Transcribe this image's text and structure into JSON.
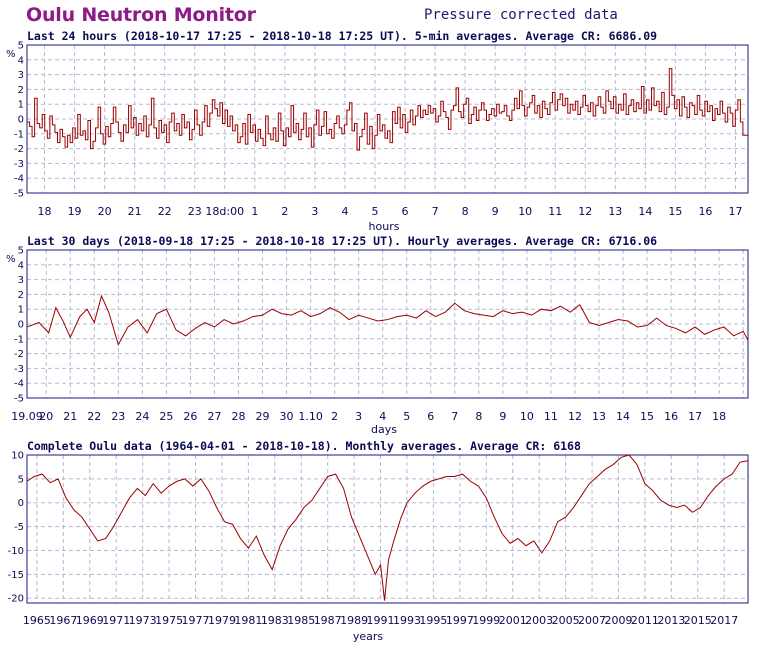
{
  "header": {
    "title": "Oulu Neutron Monitor",
    "subtitle": "Pressure corrected data"
  },
  "colors": {
    "title": "#8e1a86",
    "text": "#0b0b55",
    "frame": "#1a1a80",
    "grid": "#b8b8d8",
    "series": "#9b0000"
  },
  "chart_data": [
    {
      "type": "line",
      "step": true,
      "title": "Last 24 hours (2018-10-17 17:25 - 2018-10-18 17:25 UT). 5-min averages. Average CR: 6686.09",
      "ylabel": "%",
      "xlabel": "hours",
      "ylim": [
        -5,
        5
      ],
      "yticks": [
        -5,
        -4,
        -3,
        -2,
        -1,
        0,
        1,
        2,
        3,
        4,
        5
      ],
      "xlim": [
        0,
        288
      ],
      "xtick_positions": [
        7,
        19,
        31,
        43,
        55,
        67,
        79,
        91,
        103,
        115,
        127,
        139,
        151,
        163,
        175,
        187,
        199,
        211,
        223,
        235,
        247,
        259,
        271,
        283
      ],
      "xtick_labels": [
        "18",
        "19",
        "20",
        "21",
        "22",
        "23",
        "18d:00",
        "1",
        "2",
        "3",
        "4",
        "5",
        "6",
        "7",
        "8",
        "9",
        "10",
        "11",
        "12",
        "13",
        "14",
        "15",
        "16",
        "17"
      ],
      "grid": true,
      "series": [
        {
          "values": [
            -0.2,
            -0.5,
            -1.2,
            1.4,
            -0.3,
            -0.6,
            0.3,
            -0.8,
            -1.3,
            0.2,
            -0.4,
            -0.9,
            -1.6,
            -0.7,
            -1.2,
            -1.9,
            -1.1,
            -1.6,
            -0.6,
            -1.3,
            0.3,
            -1.1,
            -0.8,
            -1.4,
            -0.1,
            -2.0,
            -1.5,
            -0.6,
            0.8,
            -1.0,
            -1.7,
            -0.5,
            -1.2,
            -0.3,
            0.8,
            -0.2,
            -0.9,
            -1.5,
            -0.4,
            -0.9,
            0.9,
            -0.6,
            0.1,
            -1.1,
            -0.3,
            -0.8,
            0.2,
            -1.2,
            -0.4,
            1.4,
            -0.6,
            -1.3,
            -0.1,
            -0.9,
            -0.4,
            -1.6,
            -0.2,
            0.4,
            -0.8,
            -0.3,
            -1.1,
            0.3,
            -0.6,
            -0.2,
            -1.4,
            -0.7,
            0.6,
            -0.4,
            -1.1,
            -0.2,
            0.9,
            -0.5,
            0.4,
            1.3,
            0.7,
            0.2,
            1.1,
            -0.3,
            0.6,
            -0.5,
            0.2,
            -0.8,
            -0.4,
            -1.6,
            -1.2,
            -0.3,
            -1.7,
            0.3,
            -0.9,
            -0.4,
            -1.5,
            -0.7,
            -1.3,
            -1.8,
            0.2,
            -1.0,
            -1.4,
            -0.6,
            -1.5,
            0.4,
            -0.8,
            -1.8,
            -0.6,
            -1.2,
            0.9,
            -0.9,
            -0.3,
            -1.4,
            -0.7,
            0.4,
            -1.2,
            -0.6,
            -1.9,
            -0.4,
            0.6,
            -1.1,
            -0.5,
            0.5,
            -1.0,
            -0.7,
            -1.3,
            -0.3,
            0.2,
            -0.6,
            -1.0,
            -0.4,
            0.6,
            1.1,
            -0.8,
            -0.3,
            -2.1,
            -1.2,
            -0.7,
            0.4,
            -1.7,
            -0.5,
            -2.0,
            -1.1,
            0.3,
            -0.8,
            -0.4,
            -1.3,
            -0.8,
            -1.6,
            0.5,
            -0.3,
            0.8,
            -0.6,
            0.3,
            -0.9,
            -0.2,
            0.6,
            -0.4,
            0.2,
            0.9,
            0.1,
            0.6,
            0.3,
            0.9,
            0.4,
            0.7,
            -0.2,
            0.2,
            1.2,
            0.5,
            0.1,
            -0.7,
            0.6,
            0.9,
            2.1,
            0.5,
            0.1,
            1.0,
            1.4,
            -0.3,
            0.3,
            0.8,
            -0.1,
            0.6,
            1.1,
            0.6,
            -0.1,
            0.3,
            0.7,
            0.2,
            1.0,
            0.4,
            0.5,
            0.9,
            0.2,
            -0.1,
            0.6,
            1.4,
            0.7,
            1.9,
            0.9,
            0.2,
            0.8,
            1.1,
            1.6,
            0.4,
            0.9,
            0.1,
            1.2,
            0.7,
            0.3,
            1.1,
            1.8,
            0.6,
            1.3,
            1.7,
            0.9,
            1.4,
            0.4,
            1.0,
            0.6,
            1.2,
            0.3,
            0.8,
            1.6,
            0.9,
            0.5,
            1.1,
            0.2,
            0.9,
            1.5,
            0.8,
            0.4,
            1.9,
            1.2,
            0.7,
            1.5,
            0.4,
            1.0,
            0.6,
            1.7,
            0.3,
            0.9,
            1.3,
            0.5,
            1.1,
            0.7,
            2.2,
            0.4,
            1.3,
            0.6,
            2.1,
            0.9,
            1.2,
            0.5,
            1.8,
            0.3,
            0.8,
            3.4,
            1.6,
            0.7,
            1.3,
            0.2,
            1.5,
            0.8,
            0.1,
            1.1,
            0.9,
            0.3,
            1.6,
            0.6,
            0.2,
            1.2,
            0.5,
            0.9,
            -0.1,
            0.7,
            0.3,
            1.2,
            0.4,
            -0.2,
            0.8,
            0.4,
            -0.5,
            0.6,
            1.3,
            -0.2,
            -1.1,
            -1.1
          ]
        }
      ]
    },
    {
      "type": "line",
      "title": "Last 30 days (2018-09-18 17:25 - 2018-10-18 17:25 UT). Hourly averages. Average CR: 6716.06",
      "ylabel": "%",
      "xlabel": "days",
      "ylim": [
        -5,
        5
      ],
      "yticks": [
        -5,
        -4,
        -3,
        -2,
        -1,
        0,
        1,
        2,
        3,
        4,
        5
      ],
      "xlim": [
        0,
        30
      ],
      "xtick_positions": [
        0.0,
        0.8,
        1.8,
        2.8,
        3.8,
        4.8,
        5.8,
        6.8,
        7.8,
        8.8,
        9.8,
        10.8,
        11.8,
        12.8,
        13.8,
        14.8,
        15.8,
        16.8,
        17.8,
        18.8,
        19.8,
        20.8,
        21.8,
        22.8,
        23.8,
        24.8,
        25.8,
        26.8,
        27.8,
        28.8,
        29.8
      ],
      "xtick_labels": [
        "19.09",
        "20",
        "21",
        "22",
        "23",
        "24",
        "25",
        "26",
        "27",
        "28",
        "29",
        "30",
        "1.10",
        "2",
        "3",
        "4",
        "5",
        "6",
        "7",
        "8",
        "9",
        "10",
        "11",
        "12",
        "13",
        "14",
        "15",
        "16",
        "17",
        "18",
        ""
      ],
      "grid": true,
      "series": [
        {
          "x": [
            0,
            0.5,
            0.9,
            1.2,
            1.5,
            1.8,
            2.2,
            2.5,
            2.8,
            3.1,
            3.4,
            3.8,
            4.2,
            4.6,
            5.0,
            5.4,
            5.8,
            6.2,
            6.6,
            7.0,
            7.4,
            7.8,
            8.2,
            8.6,
            9.0,
            9.4,
            9.8,
            10.2,
            10.6,
            11.0,
            11.4,
            11.8,
            12.2,
            12.6,
            13.0,
            13.4,
            13.8,
            14.2,
            14.6,
            15.0,
            15.4,
            15.8,
            16.2,
            16.6,
            17.0,
            17.4,
            17.8,
            18.2,
            18.6,
            19.0,
            19.4,
            19.8,
            20.2,
            20.6,
            21.0,
            21.4,
            21.8,
            22.2,
            22.6,
            23.0,
            23.4,
            23.8,
            24.2,
            24.6,
            25.0,
            25.4,
            25.8,
            26.2,
            26.6,
            27.0,
            27.4,
            27.8,
            28.2,
            28.6,
            29.0,
            29.4,
            29.8,
            30.0
          ],
          "y": [
            -0.2,
            0.1,
            -0.6,
            1.1,
            0.2,
            -0.9,
            0.5,
            1.0,
            0.1,
            1.9,
            0.8,
            -1.4,
            -0.2,
            0.3,
            -0.6,
            0.7,
            1.0,
            -0.4,
            -0.8,
            -0.3,
            0.1,
            -0.2,
            0.3,
            0.0,
            0.2,
            0.5,
            0.6,
            1.0,
            0.7,
            0.6,
            0.9,
            0.5,
            0.7,
            1.1,
            0.8,
            0.3,
            0.6,
            0.4,
            0.2,
            0.3,
            0.5,
            0.6,
            0.4,
            0.9,
            0.5,
            0.8,
            1.4,
            0.9,
            0.7,
            0.6,
            0.5,
            0.9,
            0.7,
            0.8,
            0.6,
            1.0,
            0.9,
            1.2,
            0.8,
            1.3,
            0.1,
            -0.1,
            0.1,
            0.3,
            0.2,
            -0.2,
            -0.1,
            0.4,
            -0.1,
            -0.3,
            -0.6,
            -0.2,
            -0.7,
            -0.4,
            -0.2,
            -0.8,
            -0.5,
            -1.1
          ]
        }
      ]
    },
    {
      "type": "line",
      "title": "Complete Oulu data (1964-04-01 - 2018-10-18). Monthly averages. Average CR: 6168",
      "ylabel": "",
      "xlabel": "years",
      "ylim": [
        -21,
        10
      ],
      "yticks": [
        -20,
        -15,
        -10,
        -5,
        0,
        5,
        10
      ],
      "xlim": [
        1964.25,
        2018.8
      ],
      "xtick_positions": [
        1965,
        1967,
        1969,
        1971,
        1973,
        1975,
        1977,
        1979,
        1981,
        1983,
        1985,
        1987,
        1989,
        1991,
        1993,
        1995,
        1997,
        1999,
        2001,
        2003,
        2005,
        2007,
        2009,
        2011,
        2013,
        2015,
        2017
      ],
      "xtick_labels": [
        "1965",
        "1967",
        "1969",
        "1971",
        "1973",
        "1975",
        "1977",
        "1979",
        "1981",
        "1983",
        "1985",
        "1987",
        "1989",
        "1991",
        "1993",
        "1995",
        "1997",
        "1999",
        "2001",
        "2003",
        "2005",
        "2007",
        "2009",
        "2011",
        "2013",
        "2015",
        "2017"
      ],
      "grid": true,
      "series": [
        {
          "x": [
            1964.25,
            1964.8,
            1965.4,
            1966.0,
            1966.6,
            1967.2,
            1967.8,
            1968.4,
            1969.0,
            1969.6,
            1970.2,
            1970.8,
            1971.4,
            1972.0,
            1972.6,
            1973.2,
            1973.8,
            1974.4,
            1975.0,
            1975.6,
            1976.2,
            1976.8,
            1977.4,
            1978.0,
            1978.6,
            1979.2,
            1979.8,
            1980.4,
            1981.0,
            1981.6,
            1982.2,
            1982.8,
            1983.4,
            1984.0,
            1984.6,
            1985.2,
            1985.8,
            1986.4,
            1987.0,
            1987.6,
            1988.2,
            1988.8,
            1989.4,
            1990.0,
            1990.6,
            1991.0,
            1991.3,
            1991.6,
            1992.0,
            1992.5,
            1993.0,
            1993.6,
            1994.2,
            1994.8,
            1995.4,
            1996.0,
            1996.6,
            1997.2,
            1997.8,
            1998.4,
            1999.0,
            1999.6,
            2000.2,
            2000.8,
            2001.4,
            2002.0,
            2002.6,
            2003.2,
            2003.8,
            2004.4,
            2005.0,
            2005.6,
            2006.2,
            2006.8,
            2007.4,
            2008.0,
            2008.6,
            2009.2,
            2009.8,
            2010.4,
            2011.0,
            2011.6,
            2012.2,
            2012.8,
            2013.4,
            2014.0,
            2014.6,
            2015.2,
            2015.8,
            2016.4,
            2017.0,
            2017.6,
            2018.2,
            2018.8
          ],
          "y": [
            4.5,
            5.5,
            6.0,
            4.2,
            5.0,
            1.0,
            -1.5,
            -3.0,
            -5.5,
            -8.0,
            -7.5,
            -5.0,
            -2.0,
            1.0,
            3.0,
            1.5,
            4.0,
            2.0,
            3.5,
            4.5,
            5.0,
            3.5,
            5.0,
            2.5,
            -1.0,
            -4.0,
            -4.5,
            -7.5,
            -9.5,
            -7.0,
            -11.0,
            -14.0,
            -9.0,
            -5.5,
            -3.5,
            -1.0,
            0.5,
            3.0,
            5.5,
            6.0,
            3.0,
            -3.0,
            -7.0,
            -11.0,
            -15.0,
            -13.0,
            -20.5,
            -12.0,
            -8.0,
            -3.5,
            0.0,
            2.0,
            3.5,
            4.5,
            5.0,
            5.5,
            5.5,
            6.0,
            4.5,
            3.5,
            1.0,
            -3.0,
            -6.5,
            -8.5,
            -7.5,
            -9.0,
            -8.0,
            -10.5,
            -8.0,
            -4.0,
            -3.0,
            -1.0,
            1.5,
            4.0,
            5.5,
            7.0,
            8.0,
            9.5,
            10.0,
            8.0,
            4.0,
            2.5,
            0.5,
            -0.5,
            -1.0,
            -0.5,
            -2.0,
            -1.0,
            1.5,
            3.5,
            5.0,
            6.0,
            8.5,
            8.8
          ]
        }
      ]
    }
  ]
}
